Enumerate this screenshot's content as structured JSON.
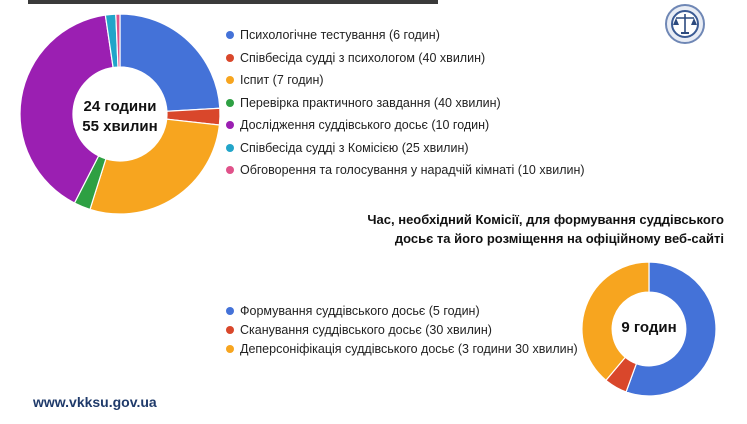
{
  "site_url": "www.vkksu.gov.ua",
  "colors": {
    "blue": "#4472d8",
    "red": "#d9472b",
    "orange": "#f7a51f",
    "green": "#2ea043",
    "purple": "#9b1fb2",
    "teal": "#22a5c9",
    "pink": "#e0528a"
  },
  "logo": {
    "icon": "judicial-emblem-icon"
  },
  "chart_data": [
    {
      "type": "pie",
      "center_label": [
        "24 години",
        "55 хвилин"
      ],
      "unit": "minutes",
      "slices": [
        {
          "label": "Психологічне тестування (6 годин)",
          "value": 360,
          "color": "#4472d8"
        },
        {
          "label": "Співбесіда судді з психологом (40 хвилин)",
          "value": 40,
          "color": "#d9472b"
        },
        {
          "label": "Іспит (7 годин)",
          "value": 420,
          "color": "#f7a51f"
        },
        {
          "label": "Перевірка практичного завдання (40 хвилин)",
          "value": 40,
          "color": "#2ea043"
        },
        {
          "label": "Дослідження суддівського досьє (10 годин)",
          "value": 600,
          "color": "#9b1fb2"
        },
        {
          "label": "Співбесіда судді з Комісією (25 хвилин)",
          "value": 25,
          "color": "#22a5c9"
        },
        {
          "label": "Обговорення та голосування у нарадчій кімнаті (10 хвилин)",
          "value": 10,
          "color": "#e0528a"
        }
      ]
    },
    {
      "type": "pie",
      "title": [
        "Час, необхідний Комісії, для формування суддівського",
        "досьє та його розміщення на офіційному веб-сайті"
      ],
      "center_label": [
        "9 годин"
      ],
      "unit": "minutes",
      "slices": [
        {
          "label": "Формування суддівського досьє (5 годин)",
          "value": 300,
          "color": "#4472d8"
        },
        {
          "label": "Сканування суддівського досьє (30 хвилин)",
          "value": 30,
          "color": "#d9472b"
        },
        {
          "label": "Деперсоніфікація суддівського досьє (3 години 30 хвилин)",
          "value": 210,
          "color": "#f7a51f"
        }
      ]
    }
  ]
}
